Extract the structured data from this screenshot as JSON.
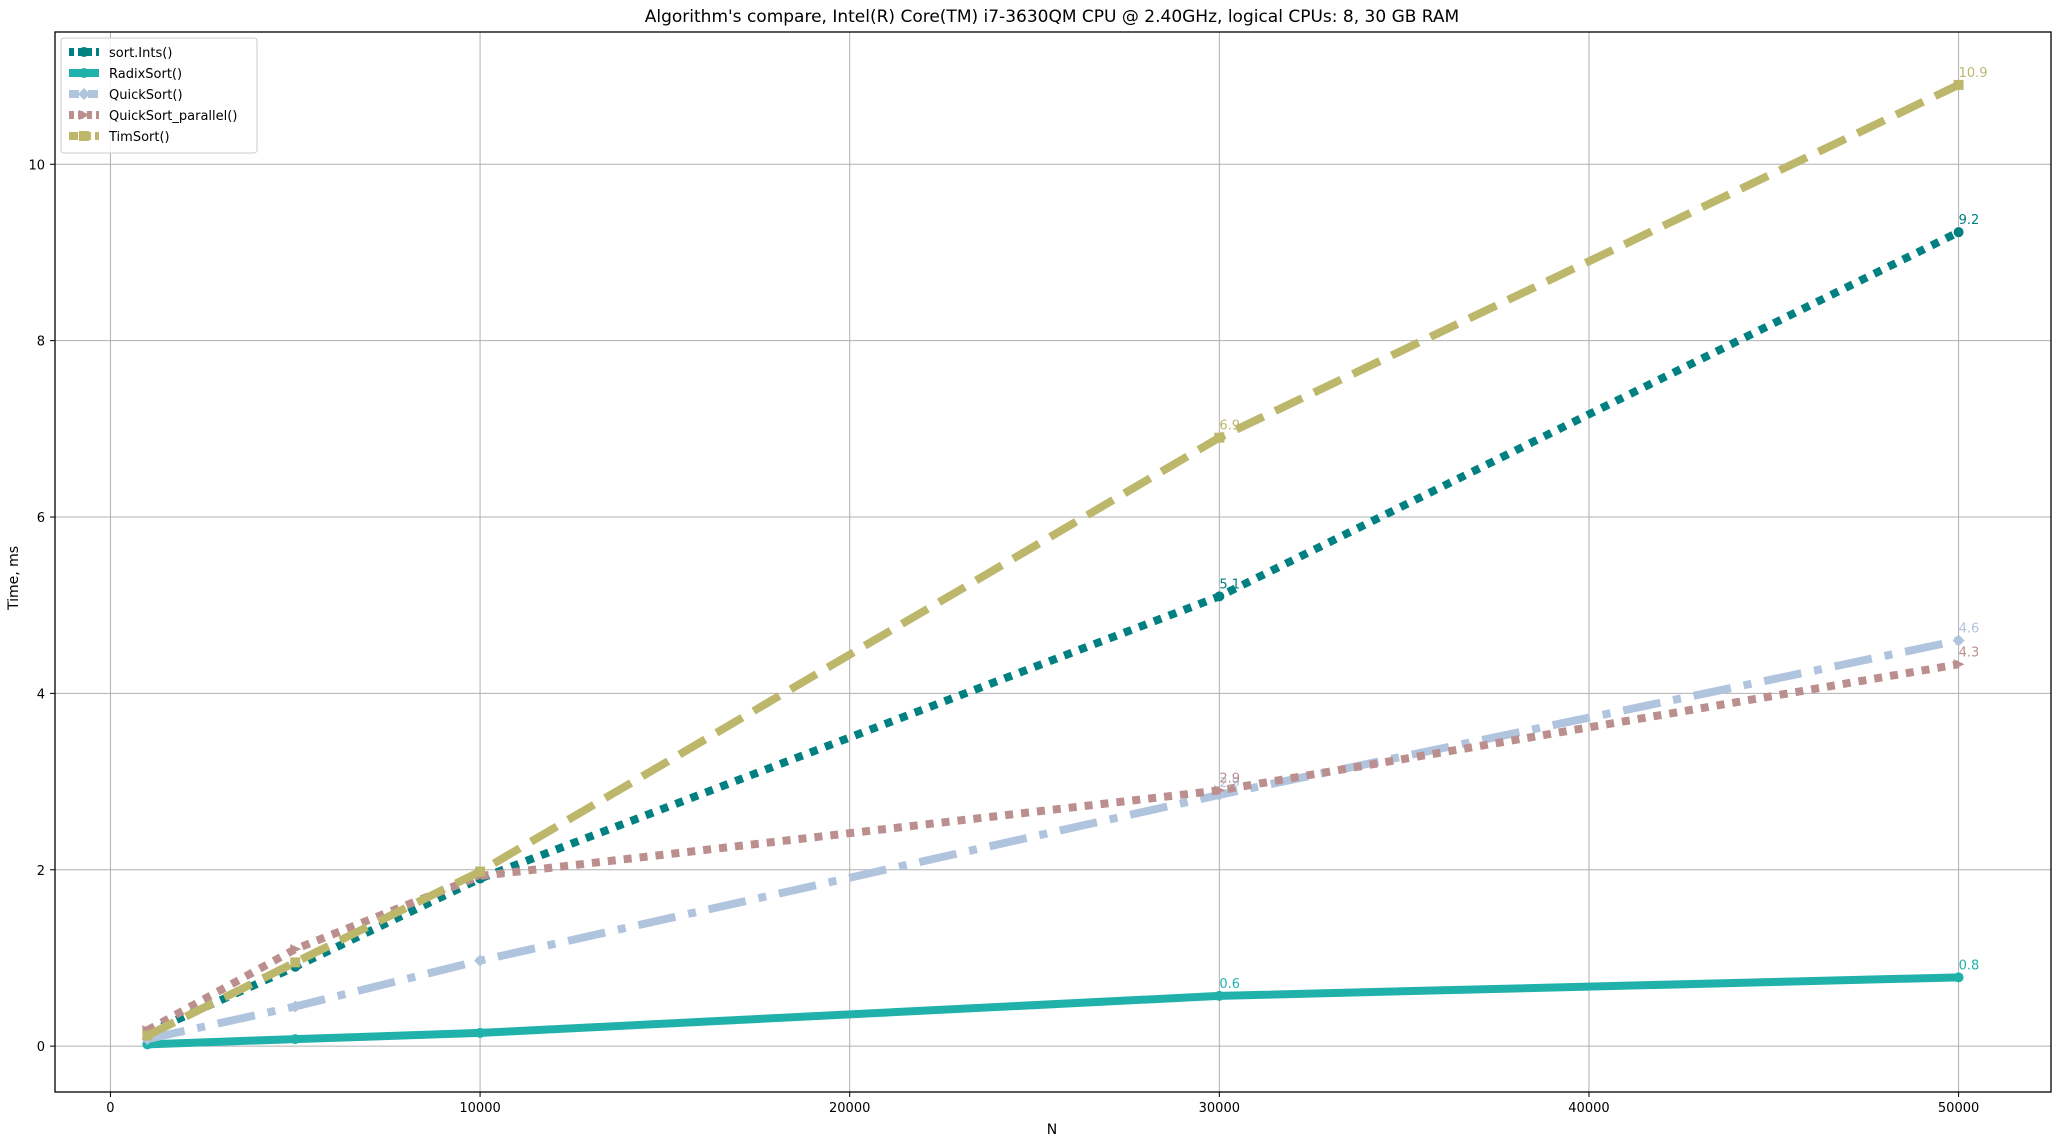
{
  "chart_data": {
    "type": "line",
    "title": "Algorithm's compare, Intel(R) Core(TM) i7-3630QM CPU @ 2.40GHz, logical CPUs: 8, 30 GB RAM",
    "xlabel": "N",
    "ylabel": "Time, ms",
    "xlim": [
      -1500,
      52500
    ],
    "ylim": [
      -0.52,
      11.5
    ],
    "xticks": [
      0,
      10000,
      20000,
      30000,
      40000,
      50000
    ],
    "xtick_labels": [
      "0",
      "10000",
      "20000",
      "30000",
      "40000",
      "50000"
    ],
    "yticks": [
      0,
      2,
      4,
      6,
      8,
      10
    ],
    "ytick_labels": [
      "0",
      "2",
      "4",
      "6",
      "8",
      "10"
    ],
    "grid": true,
    "legend_position": "top-left",
    "x": [
      1000,
      5000,
      10000,
      30000,
      50000
    ],
    "series": [
      {
        "name": "sort.Ints()",
        "values": [
          0.15,
          0.9,
          1.9,
          5.1,
          9.23
        ],
        "color": "#008080",
        "line_style": "dotted",
        "marker": "circle",
        "annotations": [
          {
            "x": 30000,
            "y": 5.1,
            "text": "5.1"
          },
          {
            "x": 50000,
            "y": 9.23,
            "text": "9.2"
          }
        ]
      },
      {
        "name": "RadixSort()",
        "values": [
          0.02,
          0.08,
          0.15,
          0.57,
          0.78
        ],
        "color": "#20b2aa",
        "line_style": "solid",
        "marker": "circle",
        "annotations": [
          {
            "x": 30000,
            "y": 0.57,
            "text": "0.6"
          },
          {
            "x": 50000,
            "y": 0.78,
            "text": "0.8"
          }
        ]
      },
      {
        "name": "QuickSort()",
        "values": [
          0.08,
          0.45,
          0.97,
          2.85,
          4.6
        ],
        "color": "#b0c4de",
        "line_style": "dashdot",
        "marker": "diamond",
        "annotations": [
          {
            "x": 30000,
            "y": 2.85,
            "text": "2.9"
          },
          {
            "x": 50000,
            "y": 4.6,
            "text": "4.6"
          }
        ]
      },
      {
        "name": "QuickSort_parallel()",
        "values": [
          0.18,
          1.1,
          1.93,
          2.9,
          4.33
        ],
        "color": "#bc8f8f",
        "line_style": "dotted",
        "marker": "triangle-right",
        "annotations": [
          {
            "x": 30000,
            "y": 2.9,
            "text": "2.9"
          },
          {
            "x": 50000,
            "y": 4.33,
            "text": "4.3"
          }
        ]
      },
      {
        "name": "TimSort()",
        "values": [
          0.12,
          0.95,
          1.98,
          6.9,
          10.9
        ],
        "color": "#bdb76b",
        "line_style": "dashed",
        "marker": "square",
        "annotations": [
          {
            "x": 30000,
            "y": 6.9,
            "text": "6.9"
          },
          {
            "x": 50000,
            "y": 10.9,
            "text": "10.9"
          }
        ]
      }
    ]
  }
}
